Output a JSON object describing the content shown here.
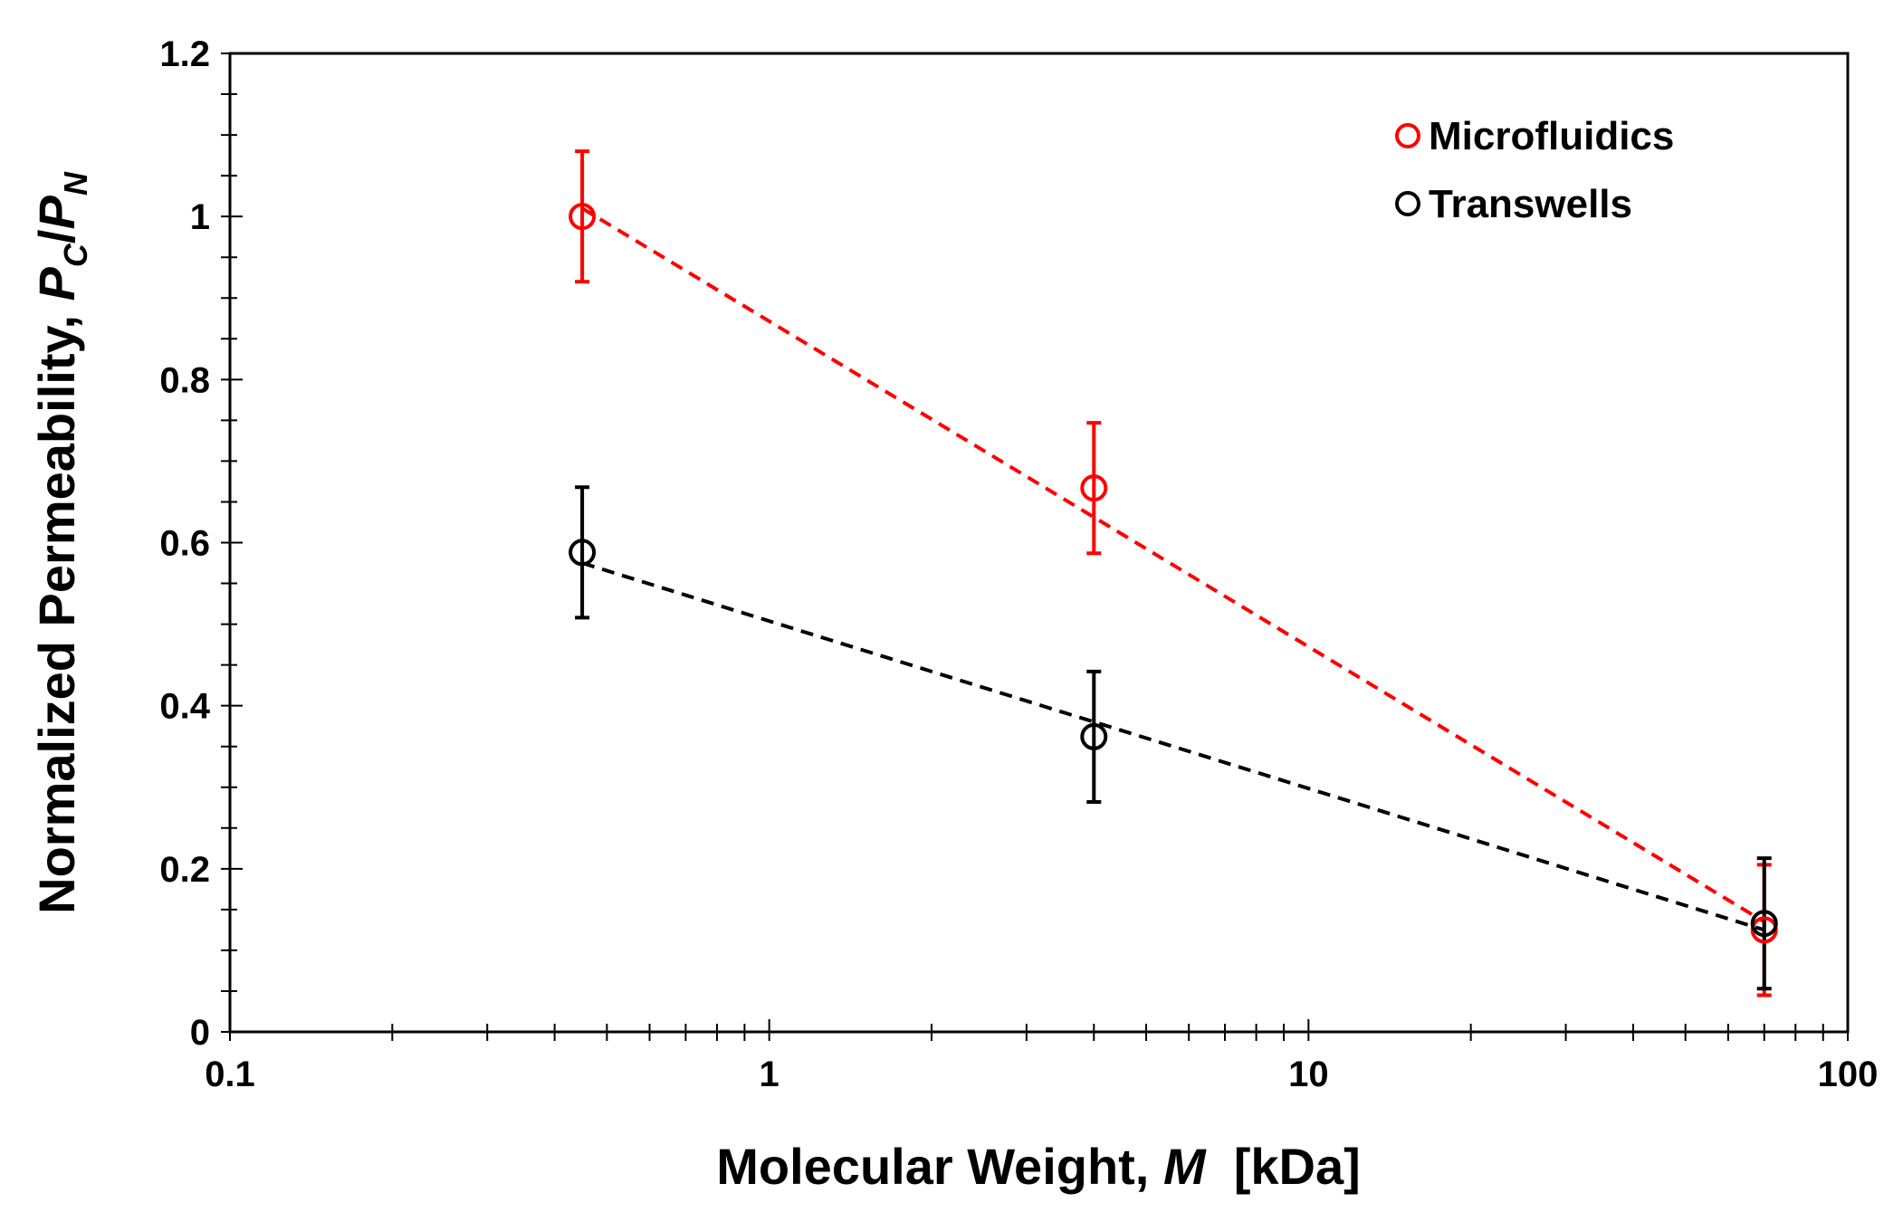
{
  "chart_data": {
    "type": "scatter",
    "xscale": "log",
    "xlim": [
      0.1,
      100
    ],
    "ylim": [
      0,
      1.2
    ],
    "xticks": [
      0.1,
      1,
      10,
      100
    ],
    "xtick_labels": [
      "0.1",
      "1",
      "10",
      "100"
    ],
    "yticks": [
      0,
      0.2,
      0.4,
      0.6,
      0.8,
      1,
      1.2
    ],
    "ytick_labels": [
      "0",
      "0.2",
      "0.4",
      "0.6",
      "0.8",
      "1",
      "1.2"
    ],
    "xlabel": {
      "prefix": "Molecular Weight, ",
      "var": "M",
      "suffix": "  [kDa]"
    },
    "ylabel": {
      "prefix": "Normalized Permeability, ",
      "p1": "P",
      "s1": "C",
      "slash": "/",
      "p2": "P",
      "s2": "N"
    },
    "legend_position": "top-right",
    "series": [
      {
        "name": "Microfluidics",
        "color": "#ff0000",
        "x": [
          0.45,
          4,
          70
        ],
        "y": [
          1.0,
          0.667,
          0.125
        ],
        "error": [
          0.08,
          0.08,
          0.08
        ],
        "fit_line": {
          "x": [
            0.45,
            70
          ],
          "y": [
            1.01,
            0.135
          ]
        }
      },
      {
        "name": "Transwells",
        "color": "#000000",
        "x": [
          0.45,
          4,
          70
        ],
        "y": [
          0.588,
          0.362,
          0.133
        ],
        "error": [
          0.08,
          0.08,
          0.08
        ],
        "fit_line": {
          "x": [
            0.45,
            70
          ],
          "y": [
            0.575,
            0.125
          ]
        }
      }
    ]
  }
}
